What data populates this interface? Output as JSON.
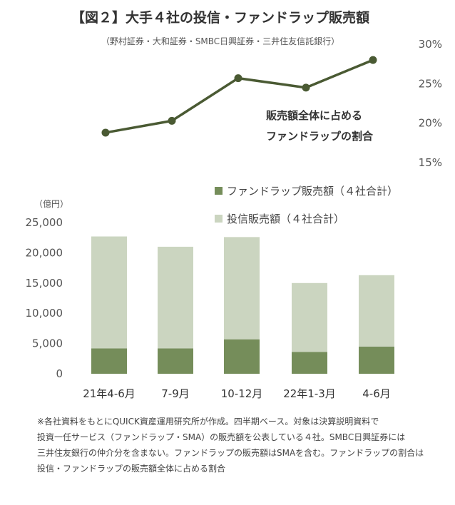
{
  "header": {
    "title": "【図２】大手４社の投信・ファンドラップ販売額",
    "subtitle": "（野村証券・大和証券・SMBC日興証券・三井住友信託銀行）"
  },
  "chart_data": [
    {
      "type": "bar",
      "stacked": true,
      "ylabel": "（億円）",
      "ylim": [
        0,
        25000
      ],
      "yticks": [
        "25,000",
        "20,000",
        "15,000",
        "10,000",
        "5,000",
        "0"
      ],
      "categories": [
        "21年4-6月",
        "7-9月",
        "10-12月",
        "22年1-3月",
        "4-6月"
      ],
      "series": [
        {
          "name": "ファンドラップ販売額（４社合計）",
          "color": "#758d5a",
          "values": [
            4200,
            4200,
            5700,
            3600,
            4500
          ]
        },
        {
          "name": "投信販売額（４社合計）",
          "color": "#cbd5c0",
          "values": [
            18500,
            16800,
            16900,
            11400,
            11800
          ]
        }
      ],
      "legend_position": "top-right"
    },
    {
      "type": "line",
      "categories": [
        "21年4-6月",
        "7-9月",
        "10-12月",
        "22年1-3月",
        "4-6月"
      ],
      "values": [
        18.8,
        20.3,
        25.7,
        24.5,
        28.0
      ],
      "ylim": [
        15,
        30
      ],
      "yticks": [
        "30%",
        "25%",
        "20%",
        "15%"
      ],
      "y_axis_side": "right",
      "color": "#4a5a33",
      "annotation": [
        "販売額全体に占める",
        "ファンドラップの割合"
      ]
    }
  ],
  "note": [
    "※各社資料をもとにQUICK資産運用研究所が作成。四半期ベース。対象は決算説明資料で",
    "投資一任サービス（ファンドラップ・SMA）の販売額を公表している４社。SMBC日興証券には",
    "三井住友銀行の仲介分を含まない。ファンドラップの販売額はSMAを含む。ファンドラップの割合は",
    "投信・ファンドラップの販売額全体に占める割合"
  ]
}
